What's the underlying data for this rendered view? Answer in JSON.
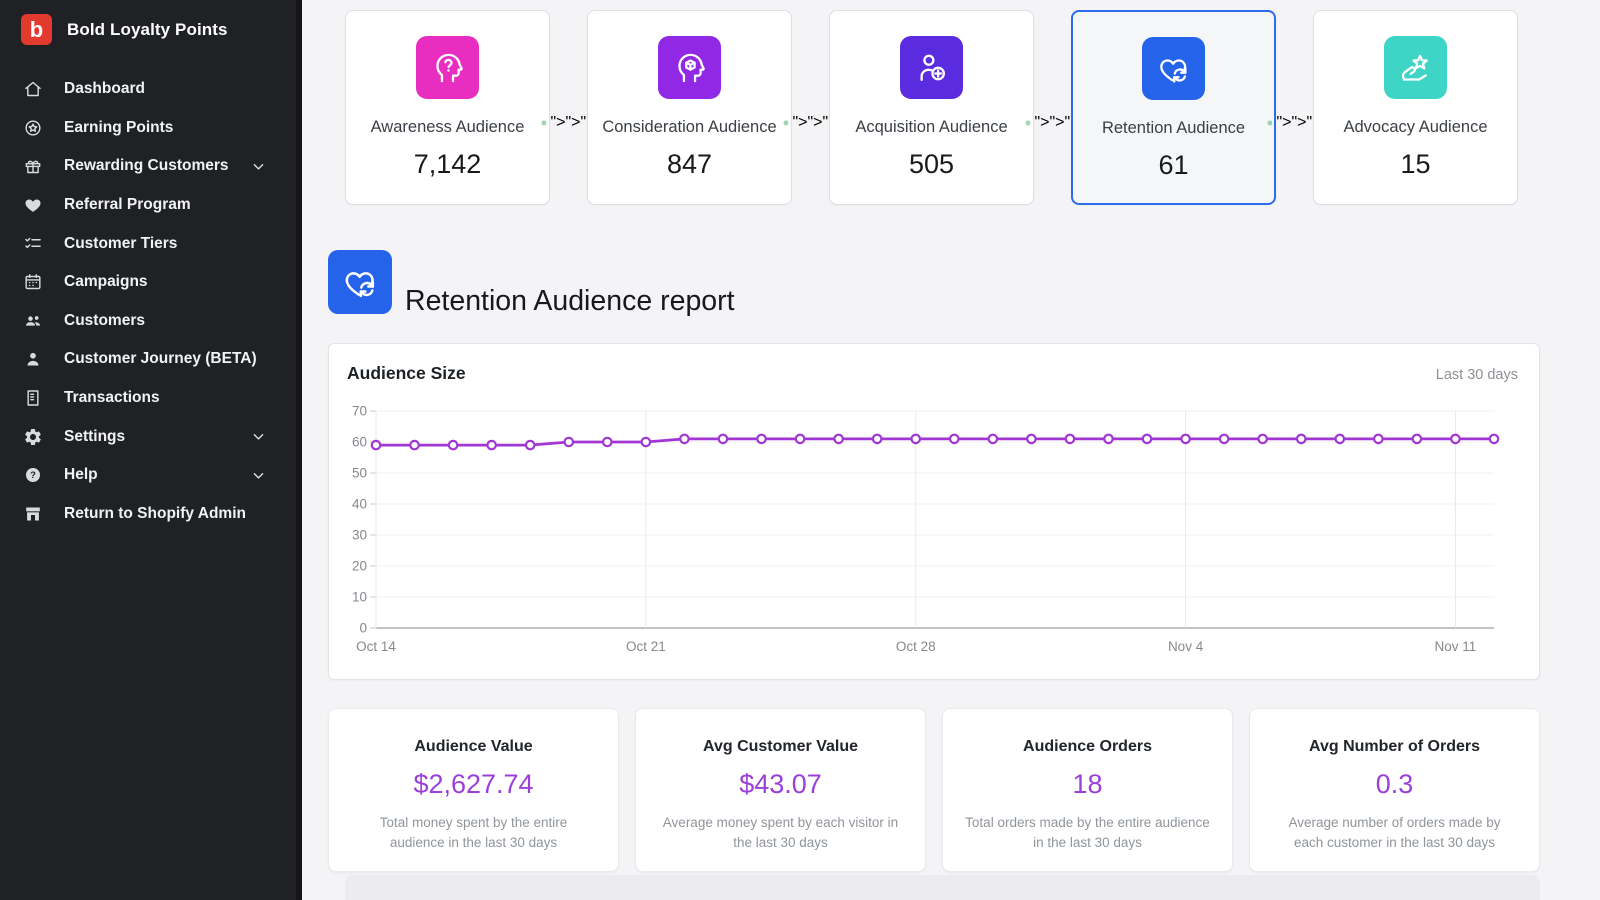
{
  "app": {
    "title": "Bold Loyalty Points",
    "logo_letter": "b"
  },
  "sidebar": {
    "items": [
      {
        "label": "Dashboard",
        "icon": "home-icon",
        "expandable": false
      },
      {
        "label": "Earning Points",
        "icon": "medal-icon",
        "expandable": false
      },
      {
        "label": "Rewarding Customers",
        "icon": "gift-icon",
        "expandable": true
      },
      {
        "label": "Referral Program",
        "icon": "heart-icon",
        "expandable": false
      },
      {
        "label": "Customer Tiers",
        "icon": "checklist-icon",
        "expandable": false
      },
      {
        "label": "Campaigns",
        "icon": "calendar-icon",
        "expandable": false
      },
      {
        "label": "Customers",
        "icon": "people-icon",
        "expandable": false
      },
      {
        "label": "Customer Journey (BETA)",
        "icon": "person-icon",
        "expandable": false
      },
      {
        "label": "Transactions",
        "icon": "receipt-icon",
        "expandable": false
      },
      {
        "label": "Settings",
        "icon": "gear-icon",
        "expandable": true
      },
      {
        "label": "Help",
        "icon": "help-icon",
        "expandable": true
      },
      {
        "label": "Return to Shopify Admin",
        "icon": "storefront-icon",
        "expandable": false
      }
    ]
  },
  "funnel": {
    "stages": [
      {
        "label": "Awareness Audience",
        "value": "7,142",
        "icon": "head-question-icon",
        "color": "#e82ec1",
        "selected": false
      },
      {
        "label": "Consideration Audience",
        "value": "847",
        "icon": "head-cube-icon",
        "color": "#9128e6",
        "selected": false
      },
      {
        "label": "Acquisition Audience",
        "value": "505",
        "icon": "person-plus-icon",
        "color": "#5b2be0",
        "selected": false
      },
      {
        "label": "Retention Audience",
        "value": "61",
        "icon": "heart-refresh-icon",
        "color": "#2563eb",
        "selected": true
      },
      {
        "label": "Advocacy Audience",
        "value": "15",
        "icon": "hand-star-icon",
        "color": "#3ed5c6",
        "selected": false
      }
    ]
  },
  "report": {
    "title": "Retention Audience report",
    "icon": "heart-refresh-icon",
    "icon_color": "#2563eb"
  },
  "chart_card": {
    "title": "Audience Size",
    "range_label": "Last 30 days"
  },
  "chart_data": {
    "type": "line",
    "title": "Audience Size",
    "x": [
      "Oct 14",
      "Oct 15",
      "Oct 16",
      "Oct 17",
      "Oct 18",
      "Oct 19",
      "Oct 20",
      "Oct 21",
      "Oct 22",
      "Oct 23",
      "Oct 24",
      "Oct 25",
      "Oct 26",
      "Oct 27",
      "Oct 28",
      "Oct 29",
      "Oct 30",
      "Oct 31",
      "Nov 1",
      "Nov 2",
      "Nov 3",
      "Nov 4",
      "Nov 5",
      "Nov 6",
      "Nov 7",
      "Nov 8",
      "Nov 9",
      "Nov 10",
      "Nov 11",
      "Nov 12"
    ],
    "series": [
      {
        "name": "Audience Size",
        "color": "#a136d4",
        "values": [
          59,
          59,
          59,
          59,
          59,
          60,
          60,
          60,
          61,
          61,
          61,
          61,
          61,
          61,
          61,
          61,
          61,
          61,
          61,
          61,
          61,
          61,
          61,
          61,
          61,
          61,
          61,
          61,
          61,
          61
        ]
      }
    ],
    "x_tick_labels": [
      "Oct 14",
      "Oct 21",
      "Oct 28",
      "Nov 4",
      "Nov 11"
    ],
    "x_tick_positions": [
      0,
      7,
      14,
      21,
      28
    ],
    "y_ticks": [
      0,
      10,
      20,
      30,
      40,
      50,
      60,
      70
    ],
    "ylim": [
      0,
      70
    ],
    "grid": true,
    "legend_position": "none",
    "marker": "circle-open"
  },
  "stats": [
    {
      "title": "Audience Value",
      "value": "$2,627.74",
      "description": "Total money spent by the entire audience in the last 30 days"
    },
    {
      "title": "Avg Customer Value",
      "value": "$43.07",
      "description": "Average money spent by each visitor in the last 30 days"
    },
    {
      "title": "Audience Orders",
      "value": "18",
      "description": "Total orders made by the entire audience in the last 30 days"
    },
    {
      "title": "Avg Number of Orders",
      "value": "0.3",
      "description": "Average number of orders made by each customer in the last 30 days"
    }
  ],
  "colors": {
    "accent_blue": "#2f6bee",
    "green_dot": "#2ea44f",
    "purple_value": "#9b3fd9",
    "line_purple": "#a136d4",
    "sidebar_bg": "#202124",
    "logo_red": "#e23a2e",
    "page_bg": "#f4f4f6"
  }
}
